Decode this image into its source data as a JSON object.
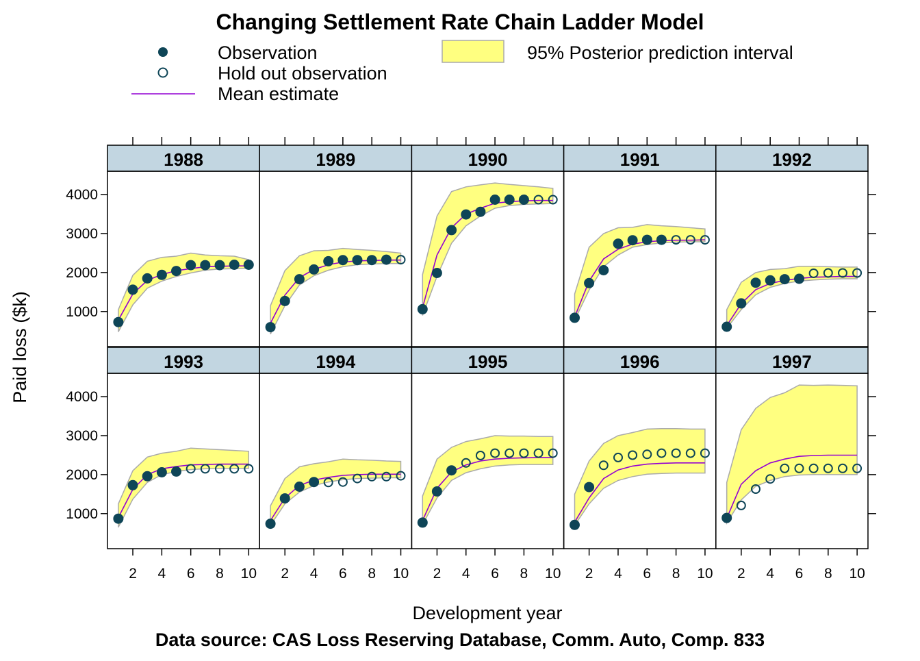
{
  "chart_data": {
    "type": "line",
    "title": "Changing Settlement Rate Chain Ladder Model",
    "xlabel": "Development year",
    "ylabel": "Paid loss ($k)",
    "caption": "Data source: CAS Loss Reserving Database, Comm. Auto, Comp. 833",
    "xlim": [
      0.25,
      10.75
    ],
    "ylim": [
      100,
      4600
    ],
    "x_ticks": [
      2,
      4,
      6,
      8,
      10
    ],
    "y_ticks": [
      1000,
      2000,
      3000,
      4000
    ],
    "grid": false,
    "legend": {
      "position": "top",
      "items": [
        {
          "key": "observation",
          "label": "Observation"
        },
        {
          "key": "holdout",
          "label": "Hold out observation"
        },
        {
          "key": "mean",
          "label": "Mean estimate"
        },
        {
          "key": "interval",
          "label": "95% Posterior prediction interval"
        }
      ]
    },
    "colors": {
      "observation": "#0e4557",
      "holdout": "#0e4557",
      "mean": "#9400d3",
      "interval_fill": "#ffff80",
      "interval_edge": "#aaaaaa",
      "strip": "#c2d6e1"
    },
    "x": [
      1,
      2,
      3,
      4,
      5,
      6,
      7,
      8,
      9,
      10
    ],
    "panels": [
      {
        "year": "1988",
        "observed": [
          730,
          1560,
          1850,
          1940,
          2040,
          2190,
          2190,
          2190,
          2200,
          2200
        ],
        "n_obs": 10,
        "mean": [
          780,
          1450,
          1800,
          1950,
          2050,
          2100,
          2150,
          2160,
          2170,
          2170
        ],
        "lower": [
          480,
          1170,
          1600,
          1780,
          1900,
          1990,
          2060,
          2090,
          2100,
          2110
        ],
        "upper": [
          1050,
          1930,
          2290,
          2390,
          2420,
          2500,
          2450,
          2430,
          2420,
          2330
        ]
      },
      {
        "year": "1989",
        "observed": [
          600,
          1270,
          1830,
          2080,
          2290,
          2320,
          2320,
          2320,
          2330,
          2330
        ],
        "n_obs": 9,
        "mean": [
          700,
          1420,
          1870,
          2080,
          2200,
          2270,
          2300,
          2310,
          2320,
          2320
        ],
        "lower": [
          420,
          1150,
          1680,
          1920,
          2060,
          2150,
          2200,
          2220,
          2230,
          2230
        ],
        "upper": [
          1150,
          2050,
          2430,
          2560,
          2570,
          2620,
          2590,
          2570,
          2540,
          2500
        ]
      },
      {
        "year": "1990",
        "observed": [
          1060,
          1990,
          3090,
          3490,
          3560,
          3870,
          3870,
          3870,
          3870,
          3870
        ],
        "n_obs": 8,
        "mean": [
          1100,
          2450,
          3150,
          3500,
          3650,
          3780,
          3820,
          3840,
          3850,
          3850
        ],
        "lower": [
          900,
          1900,
          2750,
          3200,
          3450,
          3650,
          3720,
          3750,
          3760,
          3770
        ],
        "upper": [
          1950,
          3450,
          4080,
          4200,
          4250,
          4300,
          4260,
          4230,
          4200,
          4160
        ]
      },
      {
        "year": "1991",
        "observed": [
          840,
          1730,
          2060,
          2740,
          2830,
          2840,
          2840,
          2840,
          2840,
          2840
        ],
        "n_obs": 7,
        "mean": [
          860,
          1780,
          2350,
          2600,
          2730,
          2790,
          2820,
          2830,
          2830,
          2840
        ],
        "lower": [
          780,
          1550,
          2150,
          2450,
          2650,
          2720,
          2760,
          2780,
          2790,
          2790
        ],
        "upper": [
          1450,
          2650,
          3000,
          3150,
          3160,
          3230,
          3200,
          3180,
          3150,
          3120
        ]
      },
      {
        "year": "1992",
        "observed": [
          610,
          1210,
          1740,
          1800,
          1830,
          1840,
          1980,
          1990,
          1990,
          1990
        ],
        "n_obs": 6,
        "mean": [
          640,
          1200,
          1560,
          1720,
          1800,
          1850,
          1880,
          1890,
          1900,
          1900
        ],
        "lower": [
          570,
          1050,
          1430,
          1620,
          1720,
          1780,
          1810,
          1830,
          1840,
          1840
        ],
        "upper": [
          1050,
          1750,
          2000,
          2080,
          2100,
          2160,
          2160,
          2150,
          2140,
          2140
        ]
      },
      {
        "year": "1993",
        "observed": [
          870,
          1730,
          1960,
          2060,
          2080,
          2150,
          2150,
          2150,
          2150,
          2150
        ],
        "n_obs": 5,
        "mean": [
          900,
          1620,
          2000,
          2150,
          2210,
          2250,
          2260,
          2270,
          2270,
          2270
        ],
        "lower": [
          650,
          1370,
          1800,
          2000,
          2080,
          2130,
          2150,
          2160,
          2160,
          2160
        ],
        "upper": [
          1250,
          2100,
          2450,
          2550,
          2600,
          2680,
          2660,
          2640,
          2620,
          2600
        ]
      },
      {
        "year": "1994",
        "observed": [
          740,
          1390,
          1690,
          1810,
          1800,
          1810,
          1900,
          1950,
          1950,
          1970
        ],
        "n_obs": 4,
        "mean": [
          820,
          1400,
          1720,
          1860,
          1930,
          1980,
          2000,
          2010,
          2010,
          2010
        ],
        "lower": [
          700,
          1250,
          1550,
          1720,
          1810,
          1870,
          1900,
          1910,
          1920,
          1920
        ],
        "upper": [
          1200,
          1900,
          2200,
          2280,
          2330,
          2400,
          2380,
          2370,
          2350,
          2340
        ]
      },
      {
        "year": "1995",
        "observed": [
          770,
          1570,
          2110,
          2300,
          2490,
          2550,
          2550,
          2550,
          2550,
          2550
        ],
        "n_obs": 3,
        "mean": [
          820,
          1650,
          2070,
          2250,
          2350,
          2400,
          2420,
          2430,
          2440,
          2440
        ],
        "lower": [
          720,
          1400,
          1850,
          2050,
          2150,
          2220,
          2250,
          2260,
          2260,
          2260
        ],
        "upper": [
          1450,
          2400,
          2700,
          2850,
          2920,
          3000,
          2990,
          2990,
          2980,
          2980
        ]
      },
      {
        "year": "1996",
        "observed": [
          710,
          1680,
          2240,
          2440,
          2500,
          2520,
          2550,
          2550,
          2550,
          2550
        ],
        "n_obs": 2,
        "mean": [
          780,
          1400,
          1900,
          2120,
          2220,
          2270,
          2290,
          2300,
          2300,
          2300
        ],
        "lower": [
          700,
          1250,
          1650,
          1850,
          1950,
          2010,
          2030,
          2040,
          2040,
          2040
        ],
        "upper": [
          1500,
          2350,
          2800,
          3000,
          3080,
          3170,
          3180,
          3180,
          3170,
          3170
        ]
      },
      {
        "year": "1997",
        "observed": [
          890,
          1210,
          1630,
          1890,
          2160,
          2160,
          2160,
          2160,
          2160,
          2160
        ],
        "n_obs": 1,
        "mean": [
          880,
          1750,
          2100,
          2300,
          2400,
          2470,
          2490,
          2500,
          2500,
          2500
        ],
        "lower": [
          760,
          1350,
          1700,
          1850,
          1950,
          1990,
          2000,
          2000,
          2000,
          2000
        ],
        "upper": [
          1800,
          3150,
          3700,
          3980,
          4100,
          4300,
          4290,
          4300,
          4290,
          4280
        ]
      }
    ]
  }
}
